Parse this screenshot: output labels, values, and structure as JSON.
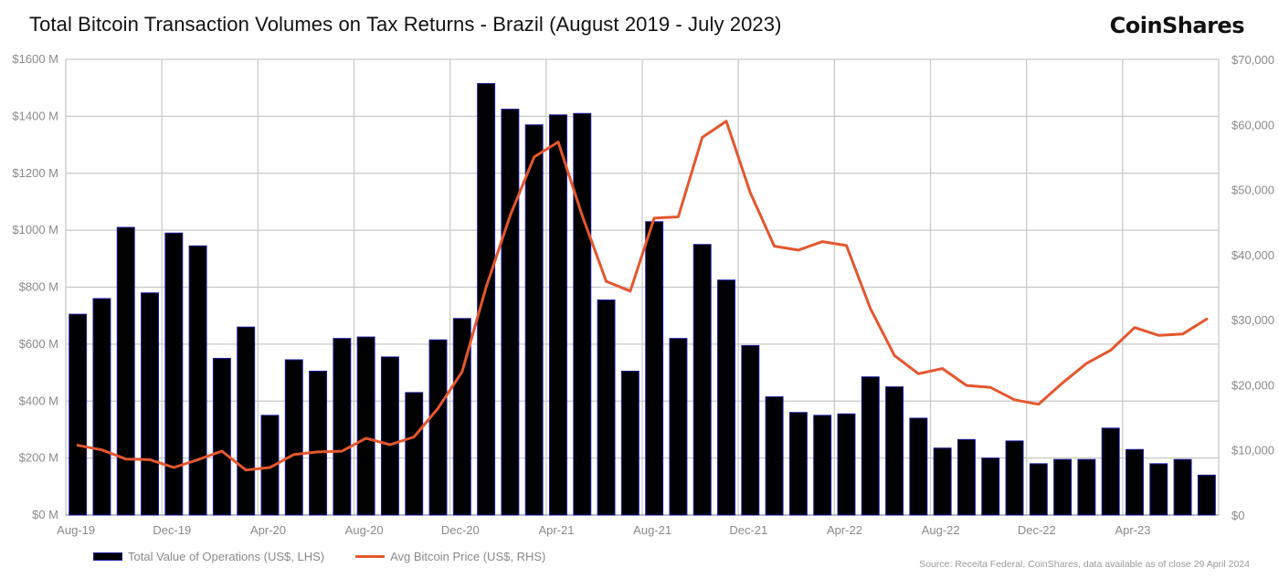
{
  "header": {
    "title": "Total Bitcoin Transaction Volumes on Tax Returns - Brazil (August 2019 - July 2023)",
    "brand": "CoinShares"
  },
  "footer": {
    "source": "Source: Receita Federal, CoinShares, data available as of close 29 April 2024"
  },
  "colors": {
    "bar_fill": "#000000",
    "bar_edge": "#1a1aa0",
    "line": "#e4572e",
    "grid": "#c8c8c8",
    "axis_text": "#8a8a8a"
  },
  "chart_data": {
    "type": "bar",
    "title": "Total Bitcoin Transaction Volumes on Tax Returns - Brazil (August 2019 - July 2023)",
    "categories": [
      "Aug-19",
      "Sep-19",
      "Oct-19",
      "Nov-19",
      "Dec-19",
      "Jan-20",
      "Feb-20",
      "Mar-20",
      "Apr-20",
      "May-20",
      "Jun-20",
      "Jul-20",
      "Aug-20",
      "Sep-20",
      "Oct-20",
      "Nov-20",
      "Dec-20",
      "Jan-21",
      "Feb-21",
      "Mar-21",
      "Apr-21",
      "May-21",
      "Jun-21",
      "Jul-21",
      "Aug-21",
      "Sep-21",
      "Oct-21",
      "Nov-21",
      "Dec-21",
      "Jan-22",
      "Feb-22",
      "Mar-22",
      "Apr-22",
      "May-22",
      "Jun-22",
      "Jul-22",
      "Aug-22",
      "Sep-22",
      "Oct-22",
      "Nov-22",
      "Dec-22",
      "Jan-23",
      "Feb-23",
      "Mar-23",
      "Apr-23",
      "May-23",
      "Jun-23",
      "Jul-23"
    ],
    "x_tick_labels": [
      "Aug-19",
      "Dec-19",
      "Apr-20",
      "Aug-20",
      "Dec-20",
      "Apr-21",
      "Aug-21",
      "Dec-21",
      "Apr-22",
      "Aug-22",
      "Dec-22",
      "Apr-23"
    ],
    "series": [
      {
        "name": "Total Value of Operations (US$, LHS)",
        "type": "bar",
        "axis": "left",
        "values": [
          705,
          760,
          1010,
          780,
          990,
          945,
          550,
          660,
          350,
          545,
          505,
          620,
          625,
          555,
          430,
          615,
          690,
          1515,
          1425,
          1370,
          1405,
          1410,
          755,
          505,
          1030,
          620,
          950,
          825,
          595,
          415,
          360,
          350,
          355,
          485,
          450,
          340,
          235,
          265,
          200,
          260,
          180,
          195,
          195,
          305,
          230,
          180,
          195,
          140
        ]
      },
      {
        "name": "Avg Bitcoin Price (US$, RHS)",
        "type": "line",
        "axis": "right",
        "values": [
          10700,
          10000,
          8600,
          8500,
          7300,
          8500,
          9800,
          6900,
          7300,
          9300,
          9700,
          9800,
          11800,
          10800,
          12000,
          16400,
          22000,
          35000,
          46000,
          55000,
          57300,
          46000,
          35900,
          34400,
          45600,
          45800,
          58000,
          60500,
          49500,
          41300,
          40700,
          42000,
          41400,
          31700,
          24500,
          21700,
          22500,
          19900,
          19600,
          17700,
          17000,
          20300,
          23300,
          25300,
          28800,
          27600,
          27800,
          30100
        ]
      }
    ],
    "y_left": {
      "ylim": [
        0,
        1600
      ],
      "ticks": [
        0,
        200,
        400,
        600,
        800,
        1000,
        1200,
        1400,
        1600
      ],
      "tick_labels": [
        "$0 M",
        "$200 M",
        "$400 M",
        "$600 M",
        "$800 M",
        "$1000 M",
        "$1200 M",
        "$1400 M",
        "$1600 M"
      ]
    },
    "y_right": {
      "ylim": [
        0,
        70000
      ],
      "ticks": [
        0,
        10000,
        20000,
        30000,
        40000,
        50000,
        60000,
        70000
      ],
      "tick_labels": [
        "$0",
        "$10,000",
        "$20,000",
        "$30,000",
        "$40,000",
        "$50,000",
        "$60,000",
        "$70,000"
      ]
    },
    "grid": true,
    "legend_placement": "bottom-left",
    "legend": [
      "Total Value of Operations (US$, LHS)",
      "Avg Bitcoin Price (US$, RHS)"
    ]
  }
}
